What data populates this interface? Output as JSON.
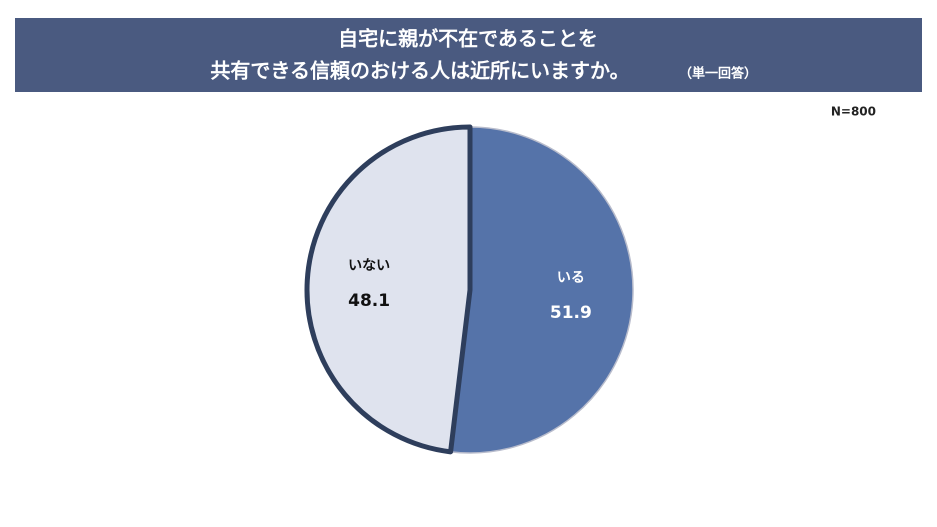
{
  "chart_data": {
    "type": "pie",
    "title": [
      "自宅に親が不在であることを",
      "共有できる信頼のおける人は近所にいますか。"
    ],
    "subtitle": "（単一回答）",
    "annotation": "N=800",
    "categories": [
      "いる",
      "いない"
    ],
    "values": [
      51.9,
      48.1
    ],
    "colors": [
      "#5573a9",
      "#dfe3ee"
    ]
  }
}
